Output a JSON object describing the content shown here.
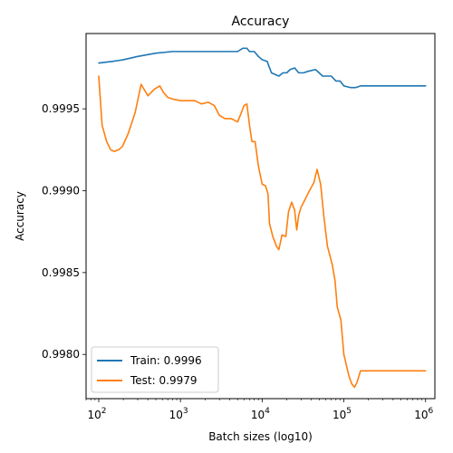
{
  "chart_data": {
    "type": "line",
    "title": "Accuracy",
    "xlabel": "Batch sizes (log10)",
    "ylabel": "Accuracy",
    "xscale": "log",
    "xlim": [
      70,
      1300000
    ],
    "ylim": [
      0.99773,
      0.99996
    ],
    "x_ticks": [
      {
        "value": 100,
        "base": "10",
        "exp": "2"
      },
      {
        "value": 1000,
        "base": "10",
        "exp": "3"
      },
      {
        "value": 10000,
        "base": "10",
        "exp": "4"
      },
      {
        "value": 100000,
        "base": "10",
        "exp": "5"
      },
      {
        "value": 1000000,
        "base": "10",
        "exp": "6"
      }
    ],
    "y_ticks": [
      {
        "value": 0.998,
        "label": "0.9980"
      },
      {
        "value": 0.9985,
        "label": "0.9985"
      },
      {
        "value": 0.999,
        "label": "0.9990"
      },
      {
        "value": 0.9995,
        "label": "0.9995"
      }
    ],
    "grid": false,
    "legend": "lower-left",
    "series": [
      {
        "name": "Train: 0.9996",
        "color": "#1f77b4",
        "points": [
          [
            100,
            0.99978
          ],
          [
            150,
            0.99979
          ],
          [
            200,
            0.9998
          ],
          [
            300,
            0.99982
          ],
          [
            500,
            0.99984
          ],
          [
            800,
            0.99985
          ],
          [
            1200,
            0.99985
          ],
          [
            2000,
            0.99985
          ],
          [
            3000,
            0.99985
          ],
          [
            5000,
            0.99985
          ],
          [
            5800,
            0.99987
          ],
          [
            6500,
            0.99987
          ],
          [
            7000,
            0.99985
          ],
          [
            8000,
            0.99985
          ],
          [
            9000,
            0.99982
          ],
          [
            10000,
            0.9998
          ],
          [
            11500,
            0.99979
          ],
          [
            13000,
            0.99972
          ],
          [
            16000,
            0.9997
          ],
          [
            18000,
            0.99972
          ],
          [
            20000,
            0.99972
          ],
          [
            22000,
            0.99974
          ],
          [
            25000,
            0.99975
          ],
          [
            28000,
            0.99972
          ],
          [
            32000,
            0.99972
          ],
          [
            37000,
            0.99973
          ],
          [
            45000,
            0.99974
          ],
          [
            55000,
            0.9997
          ],
          [
            63000,
            0.9997
          ],
          [
            70000,
            0.9997
          ],
          [
            80000,
            0.99967
          ],
          [
            90000,
            0.99967
          ],
          [
            100000,
            0.99964
          ],
          [
            120000,
            0.99963
          ],
          [
            140000,
            0.99963
          ],
          [
            160000,
            0.99964
          ],
          [
            200000,
            0.99964
          ],
          [
            300000,
            0.99964
          ],
          [
            500000,
            0.99964
          ],
          [
            1000000,
            0.99964
          ]
        ]
      },
      {
        "name": "Test: 0.9979",
        "color": "#ff7f0e",
        "points": [
          [
            100,
            0.9997
          ],
          [
            110,
            0.9994
          ],
          [
            125,
            0.9993
          ],
          [
            140,
            0.99925
          ],
          [
            155,
            0.99924
          ],
          [
            175,
            0.99925
          ],
          [
            195,
            0.99927
          ],
          [
            230,
            0.99935
          ],
          [
            280,
            0.99948
          ],
          [
            330,
            0.99965
          ],
          [
            400,
            0.99958
          ],
          [
            480,
            0.99962
          ],
          [
            560,
            0.99964
          ],
          [
            620,
            0.9996
          ],
          [
            700,
            0.99957
          ],
          [
            800,
            0.99956
          ],
          [
            1000,
            0.99955
          ],
          [
            1200,
            0.99955
          ],
          [
            1500,
            0.99955
          ],
          [
            1800,
            0.99953
          ],
          [
            2200,
            0.99954
          ],
          [
            2600,
            0.99952
          ],
          [
            3000,
            0.99946
          ],
          [
            3500,
            0.99944
          ],
          [
            4200,
            0.99944
          ],
          [
            5000,
            0.99942
          ],
          [
            5500,
            0.99947
          ],
          [
            6000,
            0.99952
          ],
          [
            6500,
            0.99953
          ],
          [
            7000,
            0.9994
          ],
          [
            7500,
            0.9993
          ],
          [
            8200,
            0.9993
          ],
          [
            9000,
            0.99915
          ],
          [
            10000,
            0.99904
          ],
          [
            11000,
            0.99903
          ],
          [
            11800,
            0.99898
          ],
          [
            12300,
            0.9988
          ],
          [
            13500,
            0.99872
          ],
          [
            15000,
            0.99866
          ],
          [
            16000,
            0.99864
          ],
          [
            17500,
            0.99873
          ],
          [
            19500,
            0.99872
          ],
          [
            21000,
            0.99887
          ],
          [
            23000,
            0.99893
          ],
          [
            25000,
            0.99888
          ],
          [
            26500,
            0.99876
          ],
          [
            28000,
            0.99885
          ],
          [
            30000,
            0.9989
          ],
          [
            33000,
            0.99894
          ],
          [
            37000,
            0.99899
          ],
          [
            43000,
            0.99905
          ],
          [
            47000,
            0.99913
          ],
          [
            52000,
            0.99904
          ],
          [
            57000,
            0.99884
          ],
          [
            63000,
            0.99866
          ],
          [
            72000,
            0.99855
          ],
          [
            78000,
            0.99845
          ],
          [
            83000,
            0.99829
          ],
          [
            92000,
            0.99821
          ],
          [
            100000,
            0.998
          ],
          [
            115000,
            0.99787
          ],
          [
            125000,
            0.99782
          ],
          [
            135000,
            0.9978
          ],
          [
            145000,
            0.99783
          ],
          [
            160000,
            0.9979
          ],
          [
            200000,
            0.9979
          ],
          [
            300000,
            0.9979
          ],
          [
            500000,
            0.9979
          ],
          [
            1000000,
            0.9979
          ]
        ]
      }
    ]
  }
}
